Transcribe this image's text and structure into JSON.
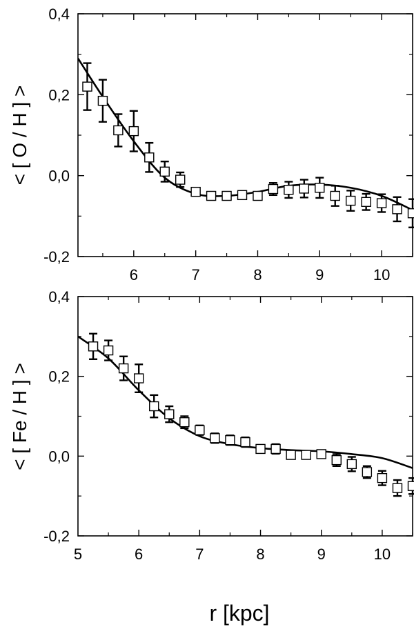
{
  "chart_data": [
    {
      "type": "scatter",
      "ylabel": "< [ O / H ] >",
      "xlim": [
        5.1,
        10.5
      ],
      "ylim": [
        -0.2,
        0.4
      ],
      "xticks": [
        6,
        7,
        8,
        9,
        10
      ],
      "xtick_labels": [
        "6",
        "7",
        "8",
        "9",
        "10"
      ],
      "yticks": [
        -0.2,
        0.0,
        0.2,
        0.4
      ],
      "ytick_labels": [
        "-0,2",
        "0,0",
        "0,2",
        "0,4"
      ],
      "points": {
        "x": [
          5.25,
          5.5,
          5.75,
          6.0,
          6.25,
          6.5,
          6.75,
          7.0,
          7.25,
          7.5,
          7.75,
          8.0,
          8.25,
          8.5,
          8.75,
          9.0,
          9.25,
          9.5,
          9.75,
          10.0,
          10.25,
          10.5
        ],
        "y": [
          0.22,
          0.185,
          0.112,
          0.11,
          0.045,
          0.01,
          -0.01,
          -0.04,
          -0.05,
          -0.05,
          -0.048,
          -0.05,
          -0.033,
          -0.035,
          -0.032,
          -0.03,
          -0.05,
          -0.062,
          -0.065,
          -0.068,
          -0.083,
          -0.093
        ],
        "err": [
          0.058,
          0.052,
          0.04,
          0.05,
          0.036,
          0.025,
          0.018,
          0.01,
          0.01,
          0.01,
          0.01,
          0.01,
          0.015,
          0.02,
          0.022,
          0.025,
          0.025,
          0.025,
          0.02,
          0.022,
          0.03,
          0.035
        ]
      },
      "model": {
        "x": [
          5.1,
          5.5,
          6.0,
          6.5,
          7.0,
          7.5,
          8.0,
          8.5,
          9.0,
          9.5,
          10.0,
          10.5
        ],
        "y": [
          0.29,
          0.195,
          0.085,
          -0.005,
          -0.045,
          -0.05,
          -0.04,
          -0.025,
          -0.022,
          -0.03,
          -0.05,
          -0.085
        ]
      }
    },
    {
      "type": "scatter",
      "ylabel": "< [ Fe / H ] >",
      "xlabel": "r [kpc]",
      "xlim": [
        5.0,
        10.5
      ],
      "ylim": [
        -0.2,
        0.4
      ],
      "xticks": [
        5,
        6,
        7,
        8,
        9,
        10
      ],
      "xtick_labels": [
        "5",
        "6",
        "7",
        "8",
        "9",
        "10"
      ],
      "yticks": [
        -0.2,
        0.0,
        0.2,
        0.4
      ],
      "ytick_labels": [
        "-0,2",
        "0,0",
        "0,2",
        "0,4"
      ],
      "points": {
        "x": [
          5.25,
          5.5,
          5.75,
          6.0,
          6.25,
          6.5,
          6.75,
          7.0,
          7.25,
          7.5,
          7.75,
          8.0,
          8.25,
          8.5,
          8.75,
          9.0,
          9.25,
          9.5,
          9.75,
          10.0,
          10.25,
          10.5
        ],
        "y": [
          0.275,
          0.265,
          0.22,
          0.195,
          0.125,
          0.105,
          0.085,
          0.065,
          0.045,
          0.04,
          0.035,
          0.018,
          0.018,
          0.003,
          0.003,
          0.005,
          -0.01,
          -0.02,
          -0.04,
          -0.055,
          -0.08,
          -0.075
        ],
        "err": [
          0.032,
          0.025,
          0.03,
          0.035,
          0.028,
          0.02,
          0.015,
          0.012,
          0.012,
          0.012,
          0.012,
          0.01,
          0.012,
          0.01,
          0.008,
          0.01,
          0.015,
          0.018,
          0.015,
          0.018,
          0.02,
          0.02
        ]
      },
      "model": {
        "x": [
          5.0,
          5.5,
          6.0,
          6.5,
          7.0,
          7.5,
          8.0,
          8.5,
          9.0,
          9.5,
          10.0,
          10.5
        ],
        "y": [
          0.3,
          0.245,
          0.165,
          0.095,
          0.05,
          0.03,
          0.02,
          0.015,
          0.012,
          0.005,
          -0.005,
          -0.03
        ]
      }
    }
  ]
}
